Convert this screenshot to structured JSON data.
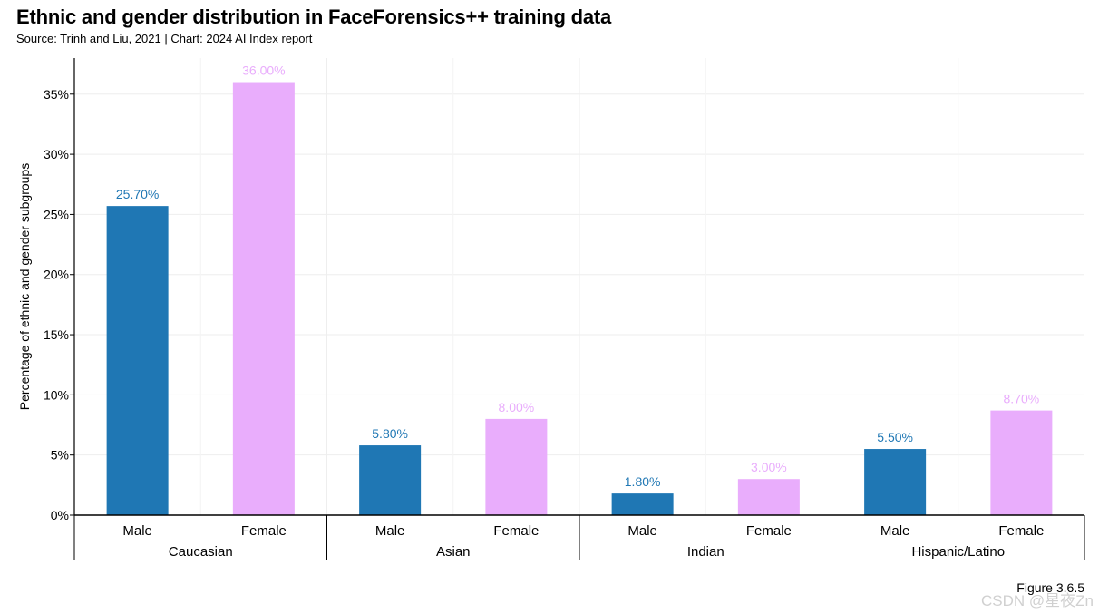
{
  "header": {
    "title": "Ethnic and gender distribution in FaceForensics++ training data",
    "subtitle": "Source: Trinh and Liu, 2021 | Chart: 2024 AI Index report"
  },
  "footer": {
    "figure_label": "Figure 3.6.5",
    "watermark": "CSDN @星夜Zn"
  },
  "colors": {
    "male": "#1f77b4",
    "female": "#e9adfc",
    "grid": "#eeeeee",
    "axis": "#000000"
  },
  "chart_data": {
    "type": "bar",
    "title": "Ethnic and gender distribution in FaceForensics++ training data",
    "ylabel": "Percentage of ethnic and gender subgroups",
    "xlabel": "",
    "ylim": [
      0,
      38
    ],
    "yticks": [
      0,
      5,
      10,
      15,
      20,
      25,
      30,
      35
    ],
    "ytick_labels": [
      "0%",
      "5%",
      "10%",
      "15%",
      "20%",
      "25%",
      "30%",
      "35%"
    ],
    "grid": true,
    "groups": [
      {
        "name": "Caucasian",
        "bars": [
          {
            "label": "Male",
            "value": 25.7,
            "value_label": "25.70%",
            "series": "male"
          },
          {
            "label": "Female",
            "value": 36.0,
            "value_label": "36.00%",
            "series": "female"
          }
        ]
      },
      {
        "name": "Asian",
        "bars": [
          {
            "label": "Male",
            "value": 5.8,
            "value_label": "5.80%",
            "series": "male"
          },
          {
            "label": "Female",
            "value": 8.0,
            "value_label": "8.00%",
            "series": "female"
          }
        ]
      },
      {
        "name": "Indian",
        "bars": [
          {
            "label": "Male",
            "value": 1.8,
            "value_label": "1.80%",
            "series": "male"
          },
          {
            "label": "Female",
            "value": 3.0,
            "value_label": "3.00%",
            "series": "female"
          }
        ]
      },
      {
        "name": "Hispanic/Latino",
        "bars": [
          {
            "label": "Male",
            "value": 5.5,
            "value_label": "5.50%",
            "series": "male"
          },
          {
            "label": "Female",
            "value": 8.7,
            "value_label": "8.70%",
            "series": "female"
          }
        ]
      }
    ]
  }
}
